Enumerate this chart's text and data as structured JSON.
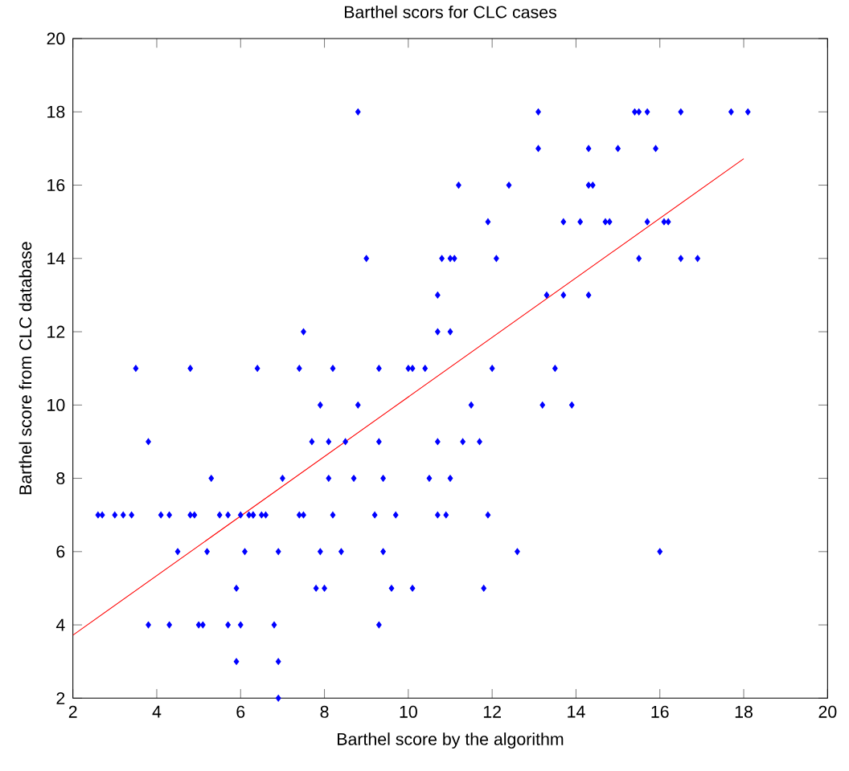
{
  "chart_data": {
    "type": "scatter",
    "title": "Barthel scors for CLC cases",
    "xlabel": "Barthel score by the algorithm",
    "ylabel": "Barthel score from CLC database",
    "xlim": [
      2,
      20
    ],
    "ylim": [
      2,
      20
    ],
    "xticks": [
      2,
      4,
      6,
      8,
      10,
      12,
      14,
      16,
      18,
      20
    ],
    "yticks": [
      2,
      4,
      6,
      8,
      10,
      12,
      14,
      16,
      18,
      20
    ],
    "grid": false,
    "marker": "diamond",
    "series": [
      {
        "color": "#0000ff",
        "x": [
          8.8,
          13.1,
          15.4,
          15.5,
          15.7,
          16.5,
          17.7,
          18.1,
          13.1,
          14.3,
          15.0,
          15.9,
          11.2,
          12.4,
          14.3,
          14.4,
          11.9,
          13.7,
          14.1,
          14.7,
          14.8,
          15.7,
          16.1,
          16.2,
          9.0,
          10.8,
          11.0,
          11.1,
          12.1,
          15.5,
          16.5,
          16.9,
          10.7,
          13.3,
          13.7,
          14.3,
          7.5,
          10.7,
          11.0,
          3.5,
          4.8,
          6.4,
          7.4,
          8.2,
          9.3,
          10.0,
          10.1,
          10.4,
          12.0,
          13.5,
          7.9,
          8.8,
          11.5,
          13.2,
          13.9,
          3.8,
          7.7,
          8.1,
          8.5,
          9.3,
          10.7,
          11.3,
          11.7,
          5.3,
          7.0,
          8.1,
          8.7,
          9.4,
          10.5,
          11.0,
          2.6,
          2.7,
          3.0,
          3.2,
          3.4,
          4.1,
          4.3,
          4.8,
          4.9,
          5.5,
          5.7,
          6.0,
          6.2,
          6.3,
          6.3,
          6.5,
          6.6,
          7.4,
          7.5,
          8.2,
          9.2,
          9.7,
          10.7,
          10.9,
          11.9,
          4.5,
          5.2,
          6.1,
          6.9,
          7.9,
          8.4,
          9.4,
          12.6,
          16.0,
          5.9,
          7.8,
          8.0,
          9.6,
          10.1,
          11.8,
          3.8,
          4.3,
          5.0,
          5.1,
          5.7,
          6.0,
          6.8,
          9.3,
          5.9,
          6.9,
          6.9
        ],
        "values": [
          18,
          18,
          18,
          18,
          18,
          18,
          18,
          18,
          17,
          17,
          17,
          17,
          16,
          16,
          16,
          16,
          15,
          15,
          15,
          15,
          15,
          15,
          15,
          15,
          14,
          14,
          14,
          14,
          14,
          14,
          14,
          14,
          13,
          13,
          13,
          13,
          12,
          12,
          12,
          11,
          11,
          11,
          11,
          11,
          11,
          11,
          11,
          11,
          11,
          11,
          10,
          10,
          10,
          10,
          10,
          9,
          9,
          9,
          9,
          9,
          9,
          9,
          9,
          8,
          8,
          8,
          8,
          8,
          8,
          8,
          7,
          7,
          7,
          7,
          7,
          7,
          7,
          7,
          7,
          7,
          7,
          7,
          7,
          7,
          7,
          7,
          7,
          7,
          7,
          7,
          7,
          7,
          7,
          7,
          7,
          6,
          6,
          6,
          6,
          6,
          6,
          6,
          6,
          6,
          5,
          5,
          5,
          5,
          5,
          5,
          4,
          4,
          4,
          4,
          4,
          4,
          4,
          4,
          3,
          3,
          2
        ]
      },
      {
        "type": "line",
        "color": "#ff0000",
        "marker": "none",
        "x": [
          2,
          18
        ],
        "values": [
          3.72,
          16.72
        ]
      }
    ]
  }
}
